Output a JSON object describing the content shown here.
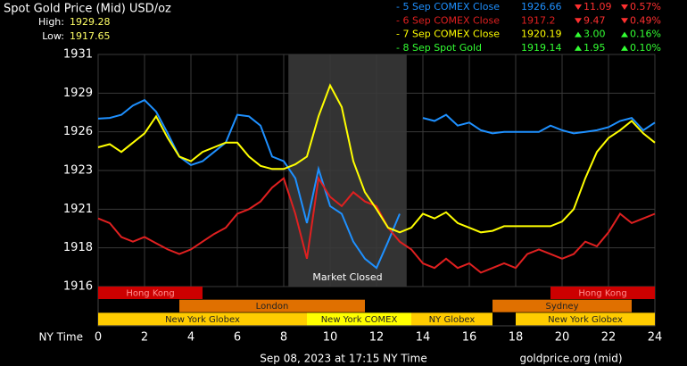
{
  "chart_data": {
    "type": "line",
    "title": "Spot Gold Price (Mid) USD/oz",
    "high_label": "High:",
    "high": 1929.28,
    "low_label": "Low:",
    "low": 1917.65,
    "x_label": "NY Time",
    "footer_left": "Sep 08, 2023 at 17:15 NY Time",
    "footer_right": "goldprice.org (mid)",
    "legend": [
      {
        "name": "- 5 Sep COMEX Close",
        "color": "#1e90ff",
        "close": 1926.66,
        "direction": "down",
        "change": "11.09",
        "pct": "0.57%"
      },
      {
        "name": "- 6 Sep COMEX Close",
        "color": "#e02020",
        "close": 1917.2,
        "direction": "down",
        "change": "9.47",
        "pct": "0.49%"
      },
      {
        "name": "- 7 Sep COMEX Close",
        "color": "#ffff00",
        "close": 1920.19,
        "direction": "up",
        "change": "3.00",
        "pct": "0.16%"
      },
      {
        "name": "- 8 Sep Spot Gold",
        "color": "#33ff33",
        "close": 1919.14,
        "direction": "up",
        "change": "1.95",
        "pct": "0.10%"
      }
    ],
    "xlim": [
      0,
      24
    ],
    "xticks": [
      0,
      2,
      4,
      6,
      8,
      10,
      12,
      14,
      16,
      18,
      20,
      22,
      24
    ],
    "ylim": [
      1916,
      1931
    ],
    "yticks": [
      1916,
      {
        "value": 1918.5,
        "label": "1918"
      },
      1921,
      {
        "value": 1923.5,
        "label": "1923"
      },
      1926,
      {
        "value": 1928.5,
        "label": "1929"
      },
      1931
    ],
    "grid": true,
    "x": [
      0,
      0.5,
      1,
      1.5,
      2,
      2.5,
      3,
      3.5,
      4,
      4.5,
      5,
      5.5,
      6,
      6.5,
      7,
      7.5,
      8,
      8.5,
      9,
      9.5,
      10,
      10.5,
      11,
      11.5,
      12,
      12.5,
      13,
      13.5,
      14,
      14.5,
      15,
      15.5,
      16,
      16.5,
      17,
      17.5,
      18,
      18.5,
      19,
      19.5,
      20,
      20.5,
      21,
      21.5,
      22,
      22.5,
      23,
      23.5,
      24
    ],
    "series": [
      {
        "color": "#1e90ff",
        "values": [
          1926.85,
          1926.9,
          1927.1,
          1927.7,
          1928.05,
          1927.3,
          1925.9,
          1924.4,
          1923.85,
          1924.1,
          1924.7,
          1925.3,
          1927.1,
          1927,
          1926.4,
          1924.4,
          1924.1,
          1923,
          1920.1,
          1923.6,
          1921.2,
          1920.7,
          1918.9,
          1917.8,
          1917.2,
          1918.9,
          1920.7,
          null,
          1926.9,
          1926.7,
          1927.1,
          1926.4,
          1926.6,
          1926.1,
          1925.9,
          1926,
          1926,
          1926,
          1926,
          1926.4,
          1926.1,
          1925.9,
          1926,
          1926.1,
          1926.3,
          1926.7,
          1926.9,
          1926.1,
          1926.6
        ]
      },
      {
        "color": "#e02020",
        "values": [
          1920.4,
          1920.1,
          1919.2,
          1918.9,
          1919.2,
          1918.8,
          1918.4,
          1918.1,
          1918.4,
          1918.9,
          1919.4,
          1919.8,
          1920.7,
          1921,
          1921.5,
          1922.4,
          1923,
          1920.7,
          1917.8,
          1923,
          1921.8,
          1921.2,
          1922.1,
          1921.5,
          1921.2,
          1919.8,
          1918.9,
          1918.4,
          1917.5,
          1917.2,
          1917.8,
          1917.2,
          1917.5,
          1916.9,
          1917.2,
          1917.5,
          1917.2,
          1918.1,
          1918.4,
          1918.1,
          1917.8,
          1918.1,
          1918.9,
          1918.6,
          1919.5,
          1920.7,
          1920.1,
          1920.4,
          1920.7
        ]
      },
      {
        "color": "#ffff00",
        "values": [
          1925,
          1925.2,
          1924.7,
          1925.3,
          1925.9,
          1927,
          1925.6,
          1924.4,
          1924.1,
          1924.7,
          1925,
          1925.3,
          1925.3,
          1924.4,
          1923.8,
          1923.6,
          1923.6,
          1923.9,
          1924.4,
          1927,
          1929,
          1927.6,
          1924.1,
          1922.1,
          1921,
          1919.8,
          1919.5,
          1919.8,
          1920.7,
          1920.4,
          1920.8,
          1920.1,
          1919.8,
          1919.5,
          1919.6,
          1919.9,
          1919.9,
          1919.9,
          1919.9,
          1919.9,
          1920.2,
          1921,
          1923,
          1924.7,
          1925.6,
          1926.1,
          1926.7,
          1925.9,
          1925.3
        ]
      }
    ],
    "shade": {
      "start": 8.2,
      "end": 13.3,
      "label": "Market Closed"
    },
    "sessions": [
      {
        "label": "Hong Kong",
        "start": 0,
        "end": 4.5,
        "row": 0,
        "color": "#cc0000"
      },
      {
        "label": "Hong Kong",
        "start": 19.5,
        "end": 24,
        "row": 0,
        "color": "#cc0000"
      },
      {
        "label": "London",
        "start": 3.5,
        "end": 11.5,
        "row": 1,
        "color": "#e07000"
      },
      {
        "label": "Sydney",
        "start": 17,
        "end": 23,
        "row": 1,
        "color": "#e07000"
      },
      {
        "label": "New York Globex",
        "start": 0,
        "end": 9,
        "row": 2,
        "color": "#ffcc00"
      },
      {
        "label": "New York COMEX",
        "start": 9,
        "end": 13.5,
        "row": 2,
        "color": "#ffff00"
      },
      {
        "label": "NY Globex",
        "start": 13.5,
        "end": 17,
        "row": 2,
        "color": "#ffcc00"
      },
      {
        "label": "New York Globex",
        "start": 18,
        "end": 24,
        "row": 2,
        "color": "#ffcc00"
      }
    ]
  }
}
